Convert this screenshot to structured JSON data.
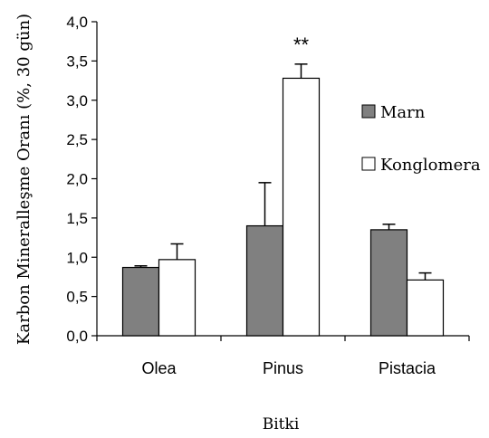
{
  "chart_data": {
    "type": "bar",
    "title": "",
    "xlabel": "Bitki",
    "ylabel": "Karbon Mineralleşme Oranı (%, 30 gün)",
    "categories": [
      "Olea",
      "Pinus",
      "Pistacia"
    ],
    "series": [
      {
        "name": "Marn",
        "color": "#808080",
        "values": [
          0.87,
          1.4,
          1.35
        ],
        "errors": [
          0.02,
          0.55,
          0.07
        ]
      },
      {
        "name": "Konglomera",
        "color": "#ffffff",
        "values": [
          0.97,
          3.28,
          0.71
        ],
        "errors": [
          0.2,
          0.18,
          0.09
        ]
      }
    ],
    "ylim": [
      0,
      4.0
    ],
    "yticks": [
      "0,0",
      "0,5",
      "1,0",
      "1,5",
      "2,0",
      "2,5",
      "3,0",
      "3,5",
      "4,0"
    ],
    "annotations": [
      {
        "text": "**",
        "category": "Pinus",
        "series": "Konglomera"
      }
    ],
    "legend_position": "right",
    "grid": false
  }
}
